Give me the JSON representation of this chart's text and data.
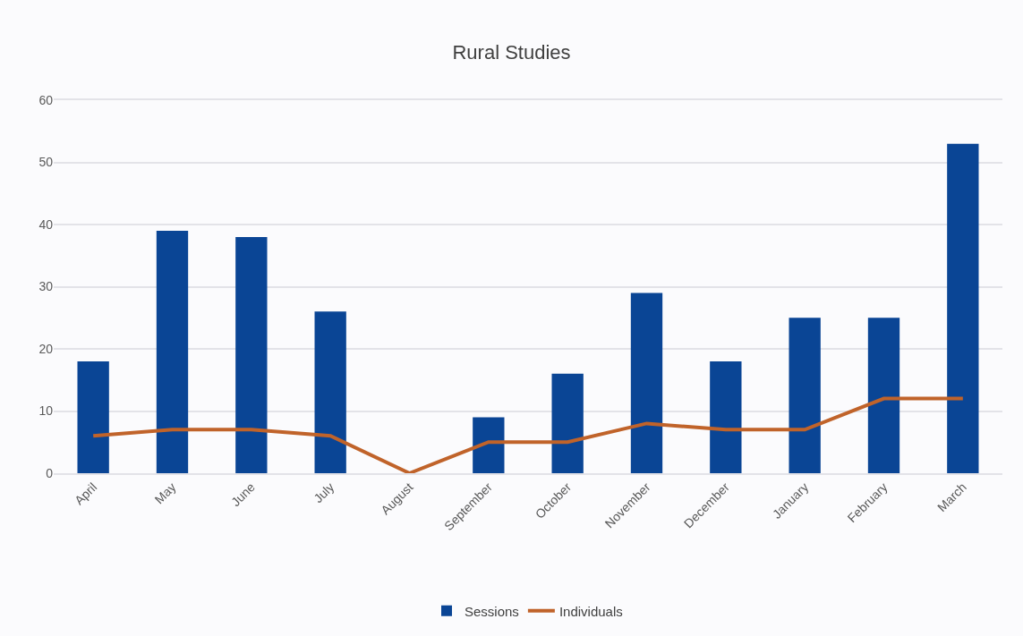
{
  "chart_data": {
    "type": "bar",
    "title": "Rural Studies",
    "categories": [
      "April",
      "May",
      "June",
      "July",
      "August",
      "September",
      "October",
      "November",
      "December",
      "January",
      "February",
      "March"
    ],
    "series": [
      {
        "name": "Sessions",
        "color": "#0a4595",
        "values": [
          18,
          39,
          38,
          26,
          0,
          9,
          16,
          29,
          18,
          25,
          25,
          53
        ]
      },
      {
        "name": "Individuals",
        "type": "line",
        "color": "#c0632a",
        "values": [
          6,
          7,
          7,
          6,
          0,
          5,
          5,
          8,
          7,
          7,
          12,
          12
        ]
      }
    ],
    "ylim": [
      0,
      60
    ],
    "yticks": [
      0,
      10,
      20,
      30,
      40,
      50,
      60
    ],
    "grid": "y",
    "legend": "bottom"
  }
}
